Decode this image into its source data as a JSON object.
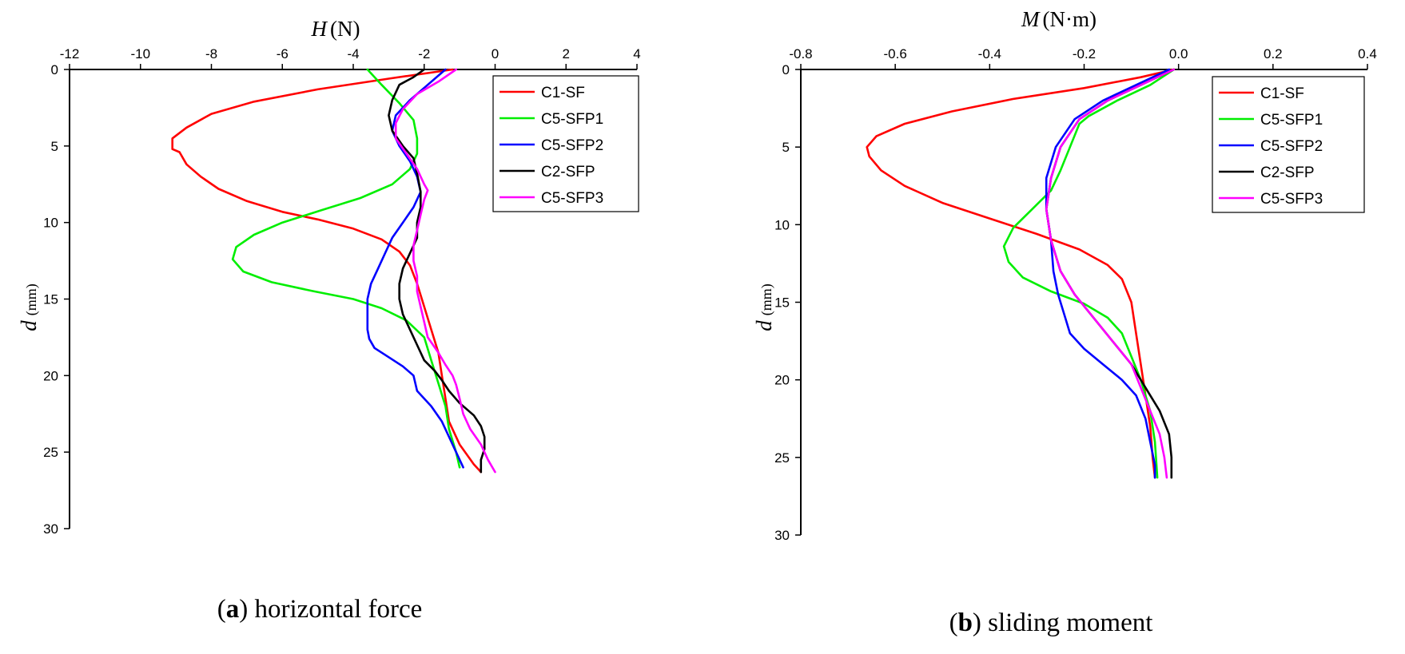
{
  "chart_data": [
    {
      "type": "line",
      "x_axis_position": "top",
      "y_inverted": true,
      "xlabel": {
        "var": "H",
        "unit": "(N)"
      },
      "ylabel": {
        "var": "d",
        "unit": "(mm)"
      },
      "xlim": [
        -12,
        4
      ],
      "ylim": [
        0,
        30
      ],
      "xticks": [
        -12,
        -10,
        -8,
        -6,
        -4,
        -2,
        0,
        2,
        4
      ],
      "yticks": [
        0,
        5,
        10,
        15,
        20,
        25,
        30
      ],
      "legend_position": "top-right",
      "caption": {
        "letter": "a",
        "text": ") horizontal force",
        "open": "("
      },
      "series": [
        {
          "name": "C1-SF",
          "color": "#ff0000",
          "points": [
            [
              -1.2,
              0
            ],
            [
              -3.0,
              0.6
            ],
            [
              -5.0,
              1.3
            ],
            [
              -6.8,
              2.1
            ],
            [
              -8.0,
              2.9
            ],
            [
              -8.7,
              3.8
            ],
            [
              -9.1,
              4.5
            ],
            [
              -9.1,
              5.2
            ],
            [
              -8.9,
              5.4
            ],
            [
              -8.7,
              6.2
            ],
            [
              -8.3,
              7.0
            ],
            [
              -7.8,
              7.8
            ],
            [
              -7.0,
              8.6
            ],
            [
              -6.0,
              9.3
            ],
            [
              -5.0,
              9.8
            ],
            [
              -4.0,
              10.4
            ],
            [
              -3.2,
              11.1
            ],
            [
              -2.7,
              11.9
            ],
            [
              -2.4,
              12.8
            ],
            [
              -2.2,
              14.0
            ],
            [
              -2.0,
              15.5
            ],
            [
              -1.8,
              17.0
            ],
            [
              -1.6,
              18.5
            ],
            [
              -1.5,
              20.0
            ],
            [
              -1.4,
              21.5
            ],
            [
              -1.3,
              23.0
            ],
            [
              -1.0,
              24.5
            ],
            [
              -0.6,
              25.8
            ],
            [
              -0.4,
              26.3
            ]
          ]
        },
        {
          "name": "C5-SFP1",
          "color": "#00ee00",
          "points": [
            [
              -3.6,
              0
            ],
            [
              -3.2,
              1.0
            ],
            [
              -2.7,
              2.2
            ],
            [
              -2.3,
              3.3
            ],
            [
              -2.2,
              4.5
            ],
            [
              -2.2,
              5.5
            ],
            [
              -2.4,
              6.5
            ],
            [
              -2.9,
              7.5
            ],
            [
              -3.8,
              8.4
            ],
            [
              -4.9,
              9.2
            ],
            [
              -6.0,
              10.0
            ],
            [
              -6.8,
              10.8
            ],
            [
              -7.3,
              11.6
            ],
            [
              -7.4,
              12.4
            ],
            [
              -7.1,
              13.2
            ],
            [
              -6.3,
              13.9
            ],
            [
              -5.1,
              14.5
            ],
            [
              -4.0,
              15.0
            ],
            [
              -3.2,
              15.6
            ],
            [
              -2.5,
              16.4
            ],
            [
              -2.0,
              17.5
            ],
            [
              -1.8,
              19.0
            ],
            [
              -1.6,
              20.5
            ],
            [
              -1.4,
              22.0
            ],
            [
              -1.3,
              23.5
            ],
            [
              -1.1,
              25.0
            ],
            [
              -1.0,
              26.0
            ]
          ]
        },
        {
          "name": "C5-SFP2",
          "color": "#0000ff",
          "points": [
            [
              -1.4,
              0
            ],
            [
              -1.9,
              1.0
            ],
            [
              -2.4,
              2.0
            ],
            [
              -2.8,
              3.0
            ],
            [
              -2.9,
              4.0
            ],
            [
              -2.7,
              5.0
            ],
            [
              -2.4,
              6.0
            ],
            [
              -2.2,
              7.0
            ],
            [
              -2.1,
              8.0
            ],
            [
              -2.3,
              9.0
            ],
            [
              -2.6,
              10.0
            ],
            [
              -2.9,
              11.0
            ],
            [
              -3.1,
              12.0
            ],
            [
              -3.3,
              13.0
            ],
            [
              -3.5,
              14.0
            ],
            [
              -3.6,
              15.0
            ],
            [
              -3.6,
              16.0
            ],
            [
              -3.6,
              17.0
            ],
            [
              -3.55,
              17.6
            ],
            [
              -3.4,
              18.2
            ],
            [
              -3.0,
              18.8
            ],
            [
              -2.6,
              19.4
            ],
            [
              -2.3,
              20.0
            ],
            [
              -2.2,
              21.0
            ],
            [
              -1.8,
              22.0
            ],
            [
              -1.5,
              23.0
            ],
            [
              -1.3,
              24.0
            ],
            [
              -1.1,
              25.0
            ],
            [
              -0.9,
              26.0
            ]
          ]
        },
        {
          "name": "C2-SFP",
          "color": "#000000",
          "points": [
            [
              -2.0,
              0
            ],
            [
              -2.3,
              0.5
            ],
            [
              -2.7,
              1.0
            ],
            [
              -2.9,
              2.0
            ],
            [
              -3.0,
              3.0
            ],
            [
              -2.9,
              4.0
            ],
            [
              -2.6,
              5.0
            ],
            [
              -2.3,
              5.8
            ],
            [
              -2.2,
              6.8
            ],
            [
              -2.1,
              8.0
            ],
            [
              -2.1,
              9.0
            ],
            [
              -2.2,
              10.0
            ],
            [
              -2.2,
              11.0
            ],
            [
              -2.4,
              12.0
            ],
            [
              -2.6,
              13.0
            ],
            [
              -2.7,
              14.0
            ],
            [
              -2.7,
              15.0
            ],
            [
              -2.6,
              16.0
            ],
            [
              -2.4,
              17.0
            ],
            [
              -2.2,
              18.0
            ],
            [
              -2.0,
              19.0
            ],
            [
              -1.7,
              19.7
            ],
            [
              -1.5,
              20.3
            ],
            [
              -1.3,
              21.0
            ],
            [
              -1.0,
              21.8
            ],
            [
              -0.6,
              22.6
            ],
            [
              -0.4,
              23.3
            ],
            [
              -0.3,
              24.0
            ],
            [
              -0.3,
              24.8
            ],
            [
              -0.4,
              25.5
            ],
            [
              -0.4,
              26.3
            ]
          ]
        },
        {
          "name": "C5-SFP3",
          "color": "#ff00ff",
          "points": [
            [
              -1.1,
              0
            ],
            [
              -1.6,
              0.8
            ],
            [
              -2.2,
              1.6
            ],
            [
              -2.6,
              2.6
            ],
            [
              -2.8,
              3.5
            ],
            [
              -2.8,
              4.5
            ],
            [
              -2.5,
              5.5
            ],
            [
              -2.2,
              6.5
            ],
            [
              -2.0,
              7.5
            ],
            [
              -1.9,
              7.9
            ],
            [
              -2.0,
              8.5
            ],
            [
              -2.1,
              9.5
            ],
            [
              -2.2,
              10.5
            ],
            [
              -2.3,
              11.5
            ],
            [
              -2.3,
              12.5
            ],
            [
              -2.2,
              13.5
            ],
            [
              -2.2,
              14.5
            ],
            [
              -2.1,
              15.5
            ],
            [
              -2.0,
              16.5
            ],
            [
              -1.9,
              17.5
            ],
            [
              -1.6,
              18.5
            ],
            [
              -1.4,
              19.3
            ],
            [
              -1.2,
              20.0
            ],
            [
              -1.1,
              20.6
            ],
            [
              -1.0,
              21.5
            ],
            [
              -0.9,
              22.5
            ],
            [
              -0.7,
              23.5
            ],
            [
              -0.4,
              24.5
            ],
            [
              -0.2,
              25.5
            ],
            [
              0.0,
              26.3
            ]
          ]
        }
      ]
    },
    {
      "type": "line",
      "x_axis_position": "top",
      "y_inverted": true,
      "xlabel": {
        "var": "M",
        "unit": "(N·m)"
      },
      "ylabel": {
        "var": "d",
        "unit": "(mm)"
      },
      "xlim": [
        -0.8,
        0.4
      ],
      "ylim": [
        0,
        30
      ],
      "xticks": [
        -0.8,
        -0.6,
        -0.4,
        -0.2,
        0.0,
        0.2,
        0.4
      ],
      "xtick_labels": [
        "-0.8",
        "-0.6",
        "-0.4",
        "-0.2",
        "0.0",
        "0.2",
        "0.4"
      ],
      "yticks": [
        0,
        5,
        10,
        15,
        20,
        25,
        30
      ],
      "legend_position": "top-right",
      "caption": {
        "letter": "b",
        "text": ") sliding moment",
        "open": "("
      },
      "series": [
        {
          "name": "C1-SF",
          "color": "#ff0000",
          "points": [
            [
              -0.01,
              0
            ],
            [
              -0.08,
              0.5
            ],
            [
              -0.2,
              1.2
            ],
            [
              -0.35,
              1.9
            ],
            [
              -0.48,
              2.7
            ],
            [
              -0.58,
              3.5
            ],
            [
              -0.64,
              4.3
            ],
            [
              -0.66,
              5.0
            ],
            [
              -0.655,
              5.6
            ],
            [
              -0.63,
              6.5
            ],
            [
              -0.58,
              7.5
            ],
            [
              -0.5,
              8.6
            ],
            [
              -0.4,
              9.6
            ],
            [
              -0.3,
              10.6
            ],
            [
              -0.21,
              11.6
            ],
            [
              -0.15,
              12.6
            ],
            [
              -0.12,
              13.5
            ],
            [
              -0.1,
              15.0
            ],
            [
              -0.09,
              17.0
            ],
            [
              -0.08,
              19.0
            ],
            [
              -0.07,
              21.0
            ],
            [
              -0.06,
              23.0
            ],
            [
              -0.055,
              25.0
            ],
            [
              -0.05,
              26.3
            ]
          ]
        },
        {
          "name": "C5-SFP1",
          "color": "#00ee00",
          "points": [
            [
              -0.01,
              0
            ],
            [
              -0.06,
              1.0
            ],
            [
              -0.13,
              2.0
            ],
            [
              -0.19,
              3.0
            ],
            [
              -0.21,
              3.5
            ],
            [
              -0.23,
              5.0
            ],
            [
              -0.25,
              6.5
            ],
            [
              -0.27,
              7.8
            ],
            [
              -0.31,
              9.0
            ],
            [
              -0.35,
              10.2
            ],
            [
              -0.37,
              11.4
            ],
            [
              -0.36,
              12.4
            ],
            [
              -0.33,
              13.4
            ],
            [
              -0.27,
              14.3
            ],
            [
              -0.2,
              15.1
            ],
            [
              -0.15,
              16.0
            ],
            [
              -0.12,
              17.0
            ],
            [
              -0.1,
              18.5
            ],
            [
              -0.08,
              20.0
            ],
            [
              -0.06,
              22.0
            ],
            [
              -0.05,
              24.0
            ],
            [
              -0.045,
              26.3
            ]
          ]
        },
        {
          "name": "C5-SFP2",
          "color": "#0000ff",
          "points": [
            [
              -0.02,
              0
            ],
            [
              -0.09,
              1.0
            ],
            [
              -0.16,
              2.0
            ],
            [
              -0.22,
              3.2
            ],
            [
              -0.26,
              5.0
            ],
            [
              -0.28,
              7.0
            ],
            [
              -0.28,
              9.0
            ],
            [
              -0.27,
              11.0
            ],
            [
              -0.265,
              13.0
            ],
            [
              -0.255,
              14.5
            ],
            [
              -0.24,
              16.0
            ],
            [
              -0.23,
              17.0
            ],
            [
              -0.2,
              18.0
            ],
            [
              -0.16,
              19.0
            ],
            [
              -0.12,
              20.0
            ],
            [
              -0.09,
              21.0
            ],
            [
              -0.07,
              22.5
            ],
            [
              -0.06,
              24.0
            ],
            [
              -0.05,
              25.5
            ],
            [
              -0.05,
              26.3
            ]
          ]
        },
        {
          "name": "C2-SFP",
          "color": "#000000",
          "points": [
            [
              -0.01,
              0
            ],
            [
              -0.08,
              1.0
            ],
            [
              -0.15,
              2.0
            ],
            [
              -0.21,
              3.2
            ],
            [
              -0.25,
              5.0
            ],
            [
              -0.27,
              7.0
            ],
            [
              -0.28,
              9.0
            ],
            [
              -0.27,
              11.0
            ],
            [
              -0.25,
              13.0
            ],
            [
              -0.22,
              14.5
            ],
            [
              -0.18,
              16.0
            ],
            [
              -0.14,
              17.5
            ],
            [
              -0.1,
              19.0
            ],
            [
              -0.07,
              20.5
            ],
            [
              -0.04,
              22.0
            ],
            [
              -0.02,
              23.5
            ],
            [
              -0.015,
              25.0
            ],
            [
              -0.015,
              26.3
            ]
          ]
        },
        {
          "name": "C5-SFP3",
          "color": "#ff00ff",
          "points": [
            [
              -0.01,
              0
            ],
            [
              -0.08,
              1.0
            ],
            [
              -0.15,
              2.0
            ],
            [
              -0.21,
              3.2
            ],
            [
              -0.25,
              5.0
            ],
            [
              -0.27,
              7.0
            ],
            [
              -0.28,
              9.0
            ],
            [
              -0.27,
              11.0
            ],
            [
              -0.25,
              13.0
            ],
            [
              -0.22,
              14.5
            ],
            [
              -0.18,
              16.0
            ],
            [
              -0.14,
              17.5
            ],
            [
              -0.1,
              19.0
            ],
            [
              -0.08,
              20.5
            ],
            [
              -0.06,
              22.0
            ],
            [
              -0.04,
              23.5
            ],
            [
              -0.03,
              25.0
            ],
            [
              -0.025,
              26.3
            ]
          ]
        }
      ]
    }
  ]
}
